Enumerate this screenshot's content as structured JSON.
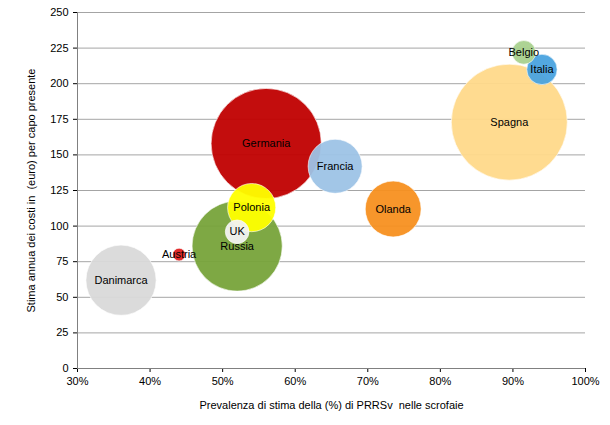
{
  "chart_data": {
    "type": "bubble",
    "xlabel": "Prevalenza di stima della (%) di PRRSv  nelle scrofaie",
    "ylabel": "Stima annua dei costi in  (euro) per capo presente",
    "categories": [
      "Spagna",
      "Germania",
      "Russia",
      "Danimarca",
      "Olanda",
      "Francia",
      "Polonia",
      "Belgio",
      "Italia",
      "UK",
      "Austria"
    ],
    "x": [
      89.5,
      56,
      52,
      36,
      73.5,
      65.5,
      54,
      91.5,
      94,
      52,
      44
    ],
    "y": [
      173,
      158,
      86,
      62,
      112,
      142,
      113,
      222,
      210,
      96,
      80
    ],
    "sizes": [
      33.6,
      30.3,
      20.3,
      12.3,
      7.8,
      7.3,
      5.8,
      1.4,
      2.3,
      1.4,
      0.4
    ],
    "colors": [
      "#ffd98a",
      "#c00000",
      "#77a33a",
      "#d9d9d9",
      "#f79020",
      "#9dc3e6",
      "#ffff00",
      "#a9d18e",
      "#4aa3df",
      "#f2f2f2",
      "#e02020"
    ],
    "xlim": [
      30,
      100
    ],
    "xticks": [
      {
        "value": 30,
        "label": "30%"
      },
      {
        "value": 40,
        "label": "40%"
      },
      {
        "value": 50,
        "label": "50%"
      },
      {
        "value": 60,
        "label": "60%"
      },
      {
        "value": 70,
        "label": "70%"
      },
      {
        "value": 80,
        "label": "80%"
      },
      {
        "value": 90,
        "label": "90%"
      },
      {
        "value": 100,
        "label": "100%"
      }
    ],
    "ylim": [
      0,
      250
    ],
    "yticks": [
      0,
      25,
      50,
      75,
      100,
      125,
      150,
      175,
      200,
      225,
      250
    ],
    "grid": true
  }
}
